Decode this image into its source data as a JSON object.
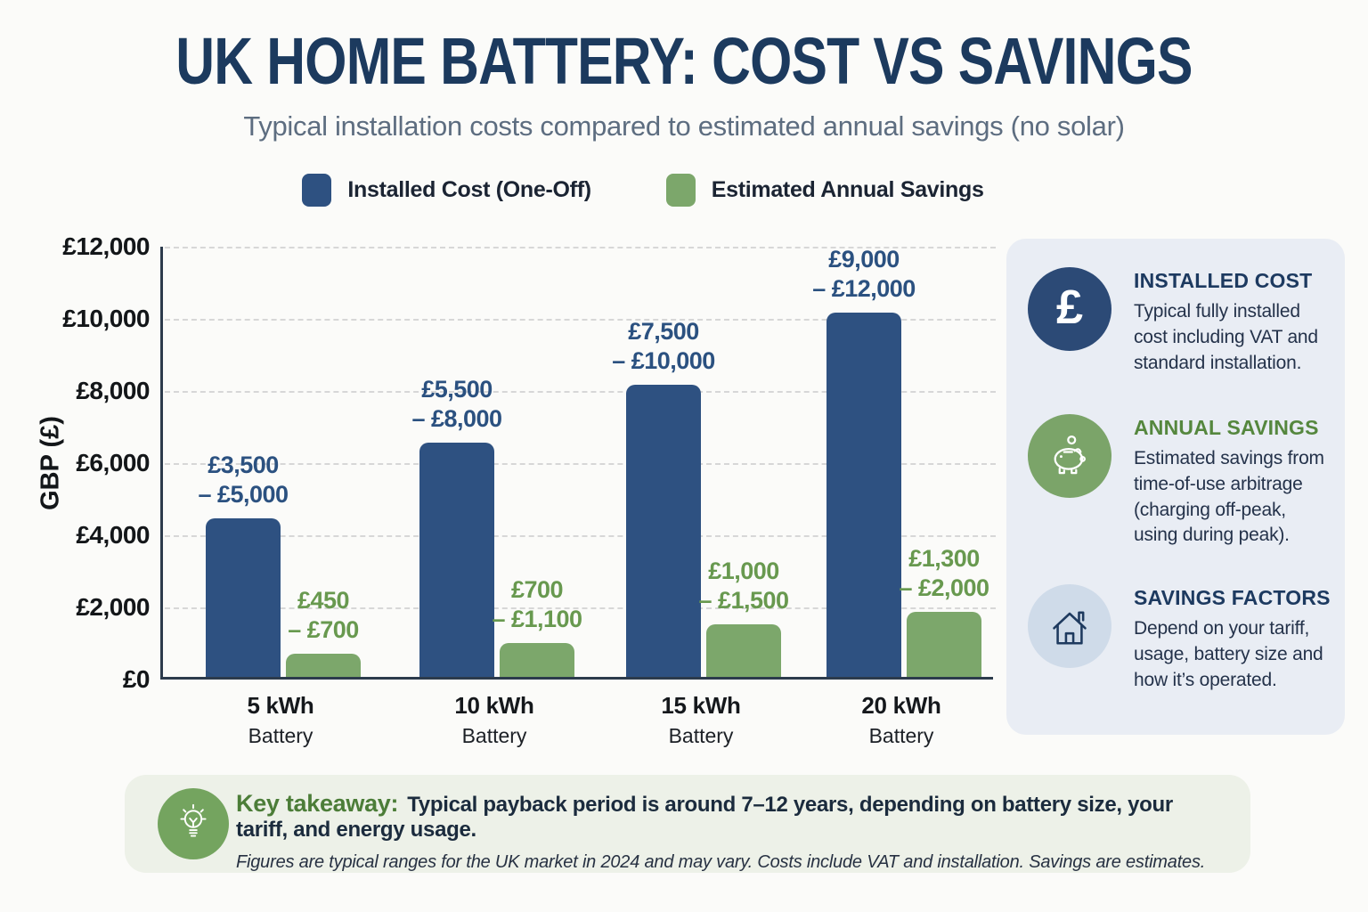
{
  "page": {
    "title": "UK HOME BATTERY: COST VS SAVINGS",
    "subtitle": "Typical installation costs compared to estimated annual savings (no solar)"
  },
  "legend": [
    {
      "label": "Installed Cost (One-Off)",
      "color": "#2e5181"
    },
    {
      "label": "Estimated Annual Savings",
      "color": "#7ca76b"
    }
  ],
  "chart_data": {
    "type": "bar",
    "title": "UK Home Battery: Cost vs Savings",
    "subtitle": "Typical installation costs compared to estimated annual savings (no solar)",
    "xlabel": "",
    "ylabel": "GBP (£)",
    "ylim": [
      0,
      12000
    ],
    "yticks": [
      "£12,000",
      "£10,000",
      "£8,000",
      "£6,000",
      "£4,000",
      "£2,000",
      "£0"
    ],
    "grid": "horizontal-dashed",
    "legend_position": "top",
    "series_names": [
      "Installed Cost (One-Off)",
      "Estimated Annual Savings"
    ],
    "colors": {
      "cost": "#2e5181",
      "savings": "#7ca76b"
    },
    "groups": [
      {
        "category": "5 kWh",
        "category_sub": "Battery",
        "cost": {
          "range": [
            3500,
            5000
          ],
          "label_line1": "£3,500",
          "label_line2": "– £5,000",
          "bar_value": 4400
        },
        "savings": {
          "range": [
            450,
            700
          ],
          "label_line1": "£450",
          "label_line2": "– £700",
          "bar_value": 650
        }
      },
      {
        "category": "10 kWh",
        "category_sub": "Battery",
        "cost": {
          "range": [
            5500,
            8000
          ],
          "label_line1": "£5,500",
          "label_line2": "– £8,000",
          "bar_value": 6500
        },
        "savings": {
          "range": [
            700,
            1100
          ],
          "label_line1": "£700",
          "label_line2": "– £1,100",
          "bar_value": 950
        }
      },
      {
        "category": "15 kWh",
        "category_sub": "Battery",
        "cost": {
          "range": [
            7500,
            10000
          ],
          "label_line1": "£7,500",
          "label_line2": "– £10,000",
          "bar_value": 8100
        },
        "savings": {
          "range": [
            1000,
            1500
          ],
          "label_line1": "£1,000",
          "label_line2": "– £1,500",
          "bar_value": 1450
        }
      },
      {
        "category": "20 kWh",
        "category_sub": "Battery",
        "cost": {
          "range": [
            9000,
            12000
          ],
          "label_line1": "£9,000",
          "label_line2": "– £12,000",
          "bar_value": 10100
        },
        "savings": {
          "range": [
            1300,
            2000
          ],
          "label_line1": "£1,300",
          "label_line2": "– £2,000",
          "bar_value": 1800
        }
      }
    ]
  },
  "sidebar": {
    "items": [
      {
        "icon": "pound-icon",
        "heading": "INSTALLED COST",
        "heading_color": "#1d3a60",
        "body": "Typical fully installed cost including VAT and standard installation."
      },
      {
        "icon": "piggy-bank-icon",
        "heading": "ANNUAL SAVINGS",
        "heading_color": "#55873e",
        "body": "Estimated savings from time-of-use arbitrage (charging off-peak, using during peak)."
      },
      {
        "icon": "house-icon",
        "heading": "SAVINGS FACTORS",
        "heading_color": "#1d3a60",
        "body": "Depend on your tariff, usage, battery size and how it’s operated."
      }
    ]
  },
  "takeaway": {
    "label": "Key takeaway:",
    "text": "Typical payback period is around 7–12 years, depending on battery size, your tariff, and energy usage.",
    "note": "Figures are typical ranges for the UK market in 2024 and may vary. Costs include VAT and installation. Savings are estimates."
  }
}
